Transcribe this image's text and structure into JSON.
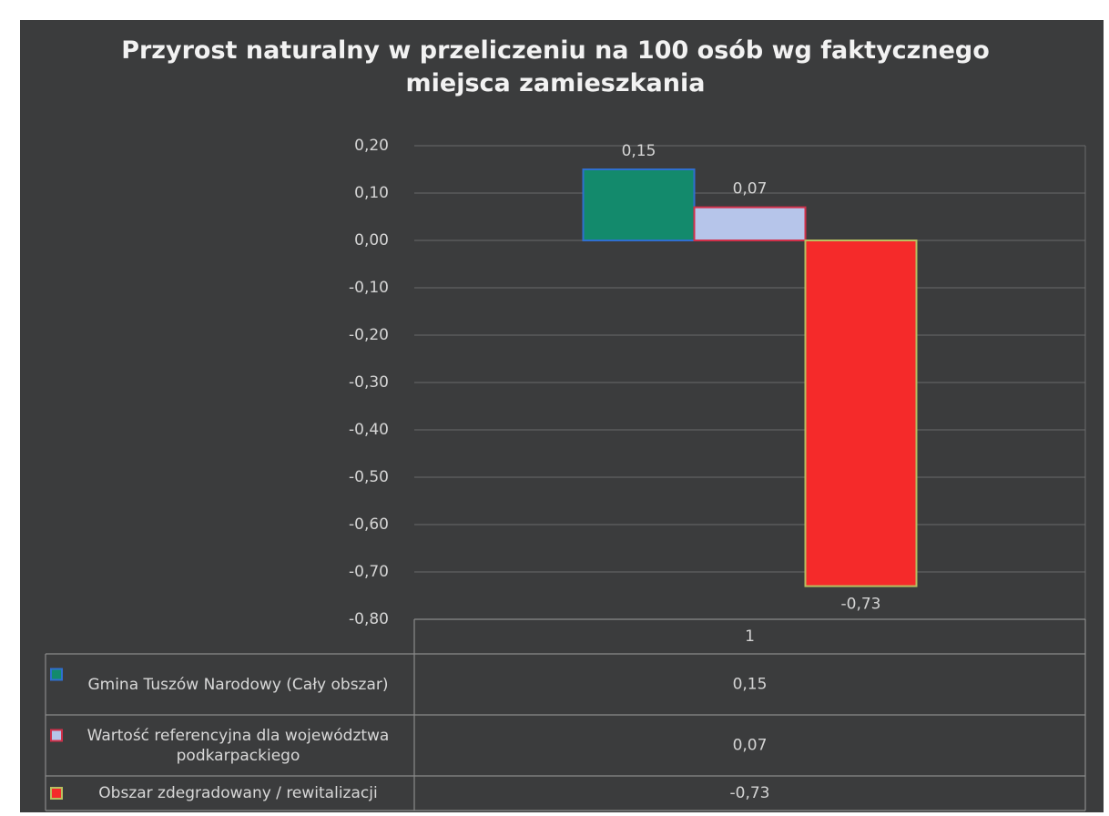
{
  "chart_data": {
    "type": "bar",
    "title": "Przyrost naturalny w przeliczeniu na 100 osób wg faktycznego miejsca zamieszkania",
    "categories": [
      "1"
    ],
    "series": [
      {
        "name": "Gmina Tuszów Narodowy (Cały obszar)",
        "color": "#138a6c",
        "edge": "#2f6fd0",
        "values": [
          0.15
        ],
        "value_labels": [
          "0,15"
        ]
      },
      {
        "name": "Wartość referencyjna dla województwa podkarpackiego",
        "color": "#b6c5ea",
        "edge": "#d0304a",
        "values": [
          0.07
        ],
        "value_labels": [
          "0,07"
        ]
      },
      {
        "name": "Obszar zdegradowany / rewitalizacji",
        "color": "#f52a2a",
        "edge": "#b8c060",
        "values": [
          -0.73
        ],
        "value_labels": [
          "-0,73"
        ]
      }
    ],
    "ylim": [
      -0.8,
      0.2
    ],
    "yticks": [
      {
        "value": 0.2,
        "label": "0,20"
      },
      {
        "value": 0.1,
        "label": "0,10"
      },
      {
        "value": 0,
        "label": "0,00"
      },
      {
        "value": -0.1,
        "label": "-0,10"
      },
      {
        "value": -0.2,
        "label": "-0,20"
      },
      {
        "value": -0.3,
        "label": "-0,30"
      },
      {
        "value": -0.4,
        "label": "-0,40"
      },
      {
        "value": -0.5,
        "label": "-0,50"
      },
      {
        "value": -0.6,
        "label": "-0,60"
      },
      {
        "value": -0.7,
        "label": "-0,70"
      },
      {
        "value": -0.8,
        "label": "-0,80"
      }
    ],
    "grid": true,
    "data_table": true
  }
}
